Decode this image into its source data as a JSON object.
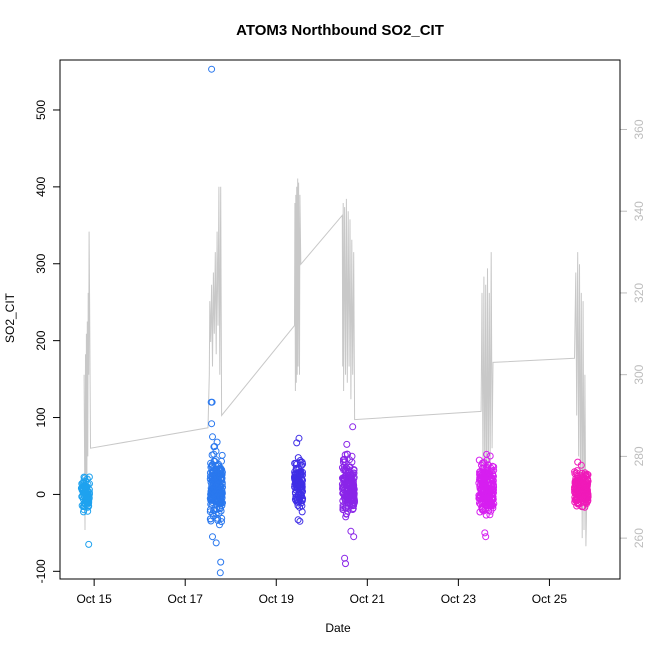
{
  "chart_data": {
    "type": "scatter",
    "title": "ATOM3 Northbound SO2_CIT",
    "xlabel": "Date",
    "ylabel": "SO2_CIT",
    "x_ticks": [
      {
        "label": "Oct 15",
        "day": 15
      },
      {
        "label": "Oct 17",
        "day": 17
      },
      {
        "label": "Oct 19",
        "day": 19
      },
      {
        "label": "Oct 21",
        "day": 21
      },
      {
        "label": "Oct 23",
        "day": 23
      },
      {
        "label": "Oct 25",
        "day": 25
      }
    ],
    "xlim": [
      14.25,
      26.55
    ],
    "ylim": [
      -110,
      565
    ],
    "y_ticks": [
      -100,
      0,
      100,
      200,
      300,
      400,
      500
    ],
    "y2lim": [
      250,
      377
    ],
    "y2_ticks": [
      260,
      280,
      300,
      320,
      340,
      360
    ],
    "grid": false,
    "legend": "none",
    "colors": {
      "line": "#c8c8c8",
      "right_axis": "#bdbdbd"
    },
    "clusters": [
      {
        "day_start": 14.72,
        "day_end": 14.9,
        "color": "#1fa2ef",
        "center": 0,
        "spread": 10,
        "count": 90,
        "outliers": [
          [
            14.88,
            -65
          ],
          [
            14.78,
            -20
          ],
          [
            14.85,
            20
          ]
        ]
      },
      {
        "day_start": 17.55,
        "day_end": 17.82,
        "color": "#2a78ee",
        "center": 10,
        "spread": 20,
        "count": 220,
        "outliers": [
          [
            17.58,
            553
          ],
          [
            17.57,
            120
          ],
          [
            17.59,
            120
          ],
          [
            17.58,
            92
          ],
          [
            17.6,
            75
          ],
          [
            17.78,
            -88
          ],
          [
            17.77,
            -102
          ],
          [
            17.68,
            -63
          ],
          [
            17.6,
            -55
          ],
          [
            17.63,
            62
          ],
          [
            17.7,
            68
          ]
        ]
      },
      {
        "day_start": 19.4,
        "day_end": 19.58,
        "color": "#3f2ee6",
        "center": 15,
        "spread": 15,
        "count": 130,
        "outliers": [
          [
            19.5,
            73
          ],
          [
            19.45,
            67
          ],
          [
            19.48,
            -33
          ],
          [
            19.52,
            -35
          ]
        ]
      },
      {
        "day_start": 20.45,
        "day_end": 20.72,
        "color": "#8a25e8",
        "center": 8,
        "spread": 18,
        "count": 190,
        "outliers": [
          [
            20.68,
            88
          ],
          [
            20.55,
            65
          ],
          [
            20.5,
            -83
          ],
          [
            20.52,
            -90
          ],
          [
            20.7,
            -55
          ],
          [
            20.64,
            -48
          ]
        ]
      },
      {
        "day_start": 23.45,
        "day_end": 23.78,
        "color": "#d61ff0",
        "center": 8,
        "spread": 15,
        "count": 220,
        "outliers": [
          [
            23.6,
            -55
          ],
          [
            23.58,
            -50
          ],
          [
            23.62,
            52
          ],
          [
            23.7,
            50
          ]
        ]
      },
      {
        "day_start": 25.55,
        "day_end": 25.85,
        "color": "#f01ab9",
        "center": 8,
        "spread": 12,
        "count": 190,
        "outliers": [
          [
            25.62,
            42
          ],
          [
            25.7,
            38
          ],
          [
            25.6,
            -15
          ]
        ]
      }
    ],
    "altitude_line": [
      [
        14.78,
        300
      ],
      [
        14.8,
        262
      ],
      [
        14.81,
        305
      ],
      [
        14.82,
        270
      ],
      [
        14.83,
        310
      ],
      [
        14.84,
        275
      ],
      [
        14.85,
        313
      ],
      [
        14.86,
        280
      ],
      [
        14.87,
        320
      ],
      [
        14.88,
        300
      ],
      [
        14.89,
        335
      ],
      [
        14.9,
        318
      ],
      [
        14.92,
        282
      ],
      [
        17.5,
        287
      ],
      [
        17.53,
        300
      ],
      [
        17.54,
        318
      ],
      [
        17.56,
        308
      ],
      [
        17.58,
        322
      ],
      [
        17.6,
        302
      ],
      [
        17.62,
        325
      ],
      [
        17.64,
        310
      ],
      [
        17.66,
        330
      ],
      [
        17.68,
        305
      ],
      [
        17.7,
        335
      ],
      [
        17.72,
        312
      ],
      [
        17.74,
        346
      ],
      [
        17.76,
        300
      ],
      [
        17.78,
        346
      ],
      [
        17.8,
        290
      ],
      [
        19.4,
        312
      ],
      [
        19.41,
        342
      ],
      [
        19.42,
        296
      ],
      [
        19.43,
        344
      ],
      [
        19.44,
        298
      ],
      [
        19.45,
        346
      ],
      [
        19.46,
        300
      ],
      [
        19.47,
        348
      ],
      [
        19.48,
        302
      ],
      [
        19.49,
        347
      ],
      [
        19.51,
        300
      ],
      [
        19.52,
        344
      ],
      [
        19.54,
        327
      ],
      [
        20.45,
        339
      ],
      [
        20.46,
        302
      ],
      [
        20.47,
        342
      ],
      [
        20.48,
        296
      ],
      [
        20.5,
        341
      ],
      [
        20.52,
        300
      ],
      [
        20.54,
        343
      ],
      [
        20.56,
        298
      ],
      [
        20.58,
        340
      ],
      [
        20.6,
        302
      ],
      [
        20.62,
        338
      ],
      [
        20.64,
        294
      ],
      [
        20.66,
        333
      ],
      [
        20.68,
        300
      ],
      [
        20.7,
        330
      ],
      [
        20.72,
        289
      ],
      [
        23.5,
        291
      ],
      [
        23.52,
        320
      ],
      [
        23.54,
        276
      ],
      [
        23.56,
        324
      ],
      [
        23.58,
        270
      ],
      [
        23.6,
        322
      ],
      [
        23.62,
        268
      ],
      [
        23.64,
        326
      ],
      [
        23.66,
        272
      ],
      [
        23.68,
        320
      ],
      [
        23.7,
        278
      ],
      [
        23.72,
        330
      ],
      [
        23.74,
        282
      ],
      [
        23.76,
        303
      ],
      [
        25.55,
        304
      ],
      [
        25.58,
        325
      ],
      [
        25.6,
        290
      ],
      [
        25.62,
        330
      ],
      [
        25.64,
        280
      ],
      [
        25.66,
        327
      ],
      [
        25.68,
        270
      ],
      [
        25.7,
        320
      ],
      [
        25.72,
        260
      ],
      [
        25.74,
        318
      ],
      [
        25.76,
        262
      ],
      [
        25.78,
        300
      ],
      [
        25.8,
        258
      ],
      [
        25.82,
        270
      ]
    ]
  }
}
